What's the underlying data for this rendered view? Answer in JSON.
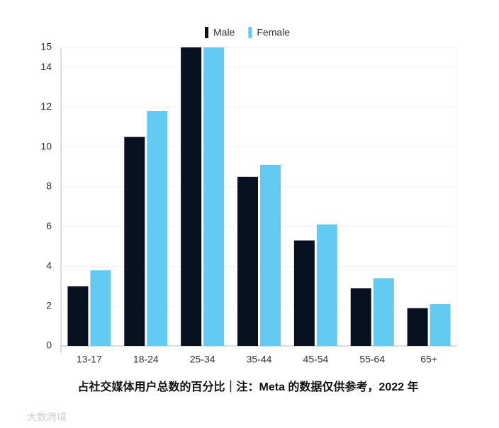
{
  "chart_data": {
    "type": "bar",
    "title": "占社交媒体用户总数的百分比｜注：Meta 的数据仅供参考，2022 年",
    "watermark": "大数跨境",
    "categories": [
      "13-17",
      "18-24",
      "25-34",
      "35-44",
      "45-54",
      "55-64",
      "65+"
    ],
    "series": [
      {
        "name": "Male",
        "color": "#06101f",
        "values": [
          3,
          10.5,
          15,
          8.5,
          5.3,
          2.9,
          1.9
        ]
      },
      {
        "name": "Female",
        "color": "#62c9f0",
        "values": [
          3.8,
          11.8,
          15,
          9.1,
          6.1,
          3.4,
          2.1
        ]
      }
    ],
    "ylim": [
      0,
      15
    ],
    "yticks": [
      0,
      2,
      4,
      6,
      8,
      10,
      12,
      14,
      15
    ],
    "grid": true,
    "legend": "top"
  }
}
